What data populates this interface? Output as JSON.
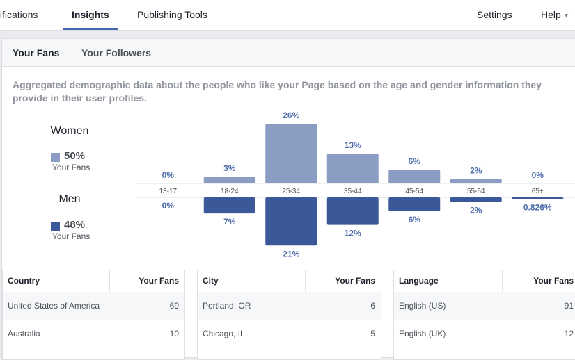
{
  "nav": {
    "items": [
      {
        "label": "tifications",
        "x": -4
      },
      {
        "label": "Insights",
        "x": 103,
        "active": true
      },
      {
        "label": "Publishing Tools",
        "x": 197
      }
    ],
    "settings": "Settings",
    "help": "Help",
    "help_caret": "▼"
  },
  "tabs": {
    "fans": "Your Fans",
    "followers": "Your Followers"
  },
  "description": "Aggregated demographic data about the people who like your Page based on the age and gender information they provide in their user profiles.",
  "legend": {
    "women": {
      "title": "Women",
      "pct": "50%",
      "sub": "Your Fans",
      "color": "#8b9dc3"
    },
    "men": {
      "title": "Men",
      "pct": "48%",
      "sub": "Your Fans",
      "color": "#3b5998"
    }
  },
  "chart_data": {
    "type": "bar",
    "categories": [
      "13-17",
      "18-24",
      "25-34",
      "35-44",
      "45-54",
      "55-64",
      "65+"
    ],
    "series": [
      {
        "name": "Women",
        "values": [
          0,
          3,
          26,
          13,
          6,
          2,
          0
        ],
        "labels": [
          "0%",
          "3%",
          "26%",
          "13%",
          "6%",
          "2%",
          "0%"
        ],
        "color": "#8b9dc3"
      },
      {
        "name": "Men",
        "values": [
          0,
          7,
          21,
          12,
          6,
          2,
          0.826
        ],
        "labels": [
          "0%",
          "7%",
          "21%",
          "12%",
          "6%",
          "2%",
          "0.826%"
        ],
        "color": "#3b5998"
      }
    ]
  },
  "tables": [
    {
      "header": [
        "Country",
        "Your Fans"
      ],
      "rows": [
        [
          "United States of America",
          "69"
        ],
        [
          "Australia",
          "10"
        ]
      ]
    },
    {
      "header": [
        "City",
        "Your Fans"
      ],
      "rows": [
        [
          "Portland, OR",
          "6"
        ],
        [
          "Chicago, IL",
          "5"
        ]
      ]
    },
    {
      "header": [
        "Language",
        "Your Fans"
      ],
      "rows": [
        [
          "English (US)",
          "91"
        ],
        [
          "English (UK)",
          "12"
        ]
      ]
    }
  ]
}
